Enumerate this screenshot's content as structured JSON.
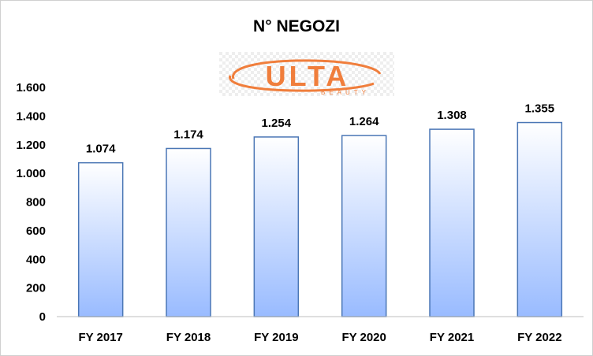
{
  "chart_data": {
    "type": "bar",
    "title": "N° NEGOZI",
    "categories": [
      "FY 2017",
      "FY 2018",
      "FY 2019",
      "FY 2020",
      "FY 2021",
      "FY 2022"
    ],
    "values": [
      1074,
      1174,
      1254,
      1264,
      1308,
      1355
    ],
    "value_labels": [
      "1.074",
      "1.174",
      "1.254",
      "1.264",
      "1.308",
      "1.355"
    ],
    "ylim": [
      0,
      1600
    ],
    "yticks": [
      0,
      200,
      400,
      600,
      800,
      1000,
      1200,
      1400,
      1600
    ],
    "ytick_labels": [
      "0",
      "200",
      "400",
      "600",
      "800",
      "1.000",
      "1.200",
      "1.400",
      "1.600"
    ],
    "grid": false,
    "legend": "none",
    "bar_gradient_top": "#ffffff",
    "bar_gradient_bottom": "#99bbff",
    "bar_border": "#4a76b5"
  },
  "logo": {
    "brand": "ULTA",
    "tagline": "BEAUTY",
    "color": "#f07e3c"
  }
}
